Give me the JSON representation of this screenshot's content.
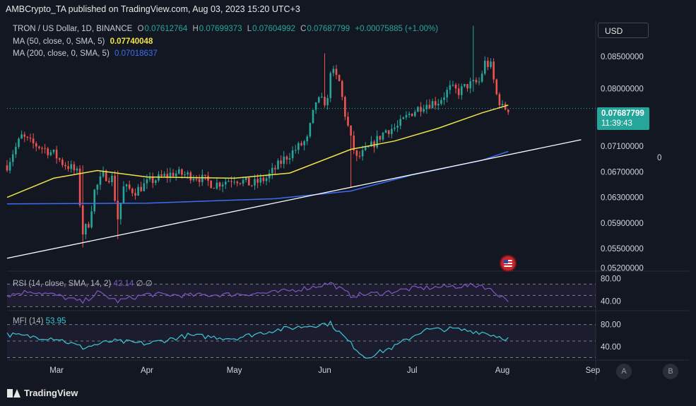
{
  "header": {
    "published": "AMBCrypto_TA published on TradingView.com, Aug 03, 2023 15:20 UTC+3"
  },
  "legend": {
    "symbol": "TRON / US Dollar, 1D, BINANCE",
    "o_label": "O",
    "o": "0.07612764",
    "h_label": "H",
    "h": "0.07699373",
    "l_label": "L",
    "l": "0.07604992",
    "c_label": "C",
    "c": "0.07687799",
    "change": "+0.00075885 (+1.00%)",
    "ma50_label": "MA (50, close, 0, SMA, 5)",
    "ma50_value": "0.07740048",
    "ma200_label": "MA (200, close, 0, SMA, 5)",
    "ma200_value": "0.07018637"
  },
  "currency_button": "USD",
  "price_tag": {
    "value": "0.07687799",
    "countdown": "11:39:43"
  },
  "side_value": "0",
  "scale_buttons": {
    "a": "A",
    "b": "B"
  },
  "rsi": {
    "label": "RSI (14, close, SMA, 14, 2)",
    "value": "42.14",
    "extra": "∅ ∅"
  },
  "mfi": {
    "label": "MFI (14)",
    "value": "53.95"
  },
  "footer": {
    "brand": "TradingView"
  },
  "colors": {
    "background": "#131722",
    "up": "#26a69a",
    "down": "#ef5350",
    "ma50": "#f0e24a",
    "ma200": "#3d6df5",
    "trendline": "#ffffff",
    "rsi": "#7e57c2",
    "mfi": "#3cc8d8"
  },
  "chart_data": [
    {
      "type": "candlestick",
      "title": "TRON / US Dollar, 1D, BINANCE",
      "x_ticks": [
        "Mar",
        "Apr",
        "May",
        "Jun",
        "Jul",
        "Aug",
        "Sep"
      ],
      "y_ticks": [
        "0.05200000",
        "0.05500000",
        "0.05900000",
        "0.06300000",
        "0.06700000",
        "0.07100000",
        "0.08000000",
        "0.08500000"
      ],
      "ylim": [
        0.0515,
        0.0905
      ],
      "x_start": "2023-02-12",
      "x_end": "2023-09-02",
      "last_price": 0.07687799,
      "candle_path": [
        [
          "2023-02-12",
          0.068
        ],
        [
          "2023-02-14",
          0.07
        ],
        [
          "2023-02-17",
          0.0725
        ],
        [
          "2023-02-20",
          0.0715
        ],
        [
          "2023-02-24",
          0.0708
        ],
        [
          "2023-02-28",
          0.0698
        ],
        [
          "2023-03-03",
          0.0684
        ],
        [
          "2023-03-06",
          0.0676
        ],
        [
          "2023-03-08",
          0.0668
        ],
        [
          "2023-03-10",
          0.0575
        ],
        [
          "2023-03-12",
          0.059
        ],
        [
          "2023-03-14",
          0.064
        ],
        [
          "2023-03-17",
          0.0665
        ],
        [
          "2023-03-20",
          0.066
        ],
        [
          "2023-03-22",
          0.0598
        ],
        [
          "2023-03-24",
          0.0645
        ],
        [
          "2023-03-28",
          0.064
        ],
        [
          "2023-04-02",
          0.0655
        ],
        [
          "2023-04-10",
          0.0668
        ],
        [
          "2023-04-18",
          0.0663
        ],
        [
          "2023-04-24",
          0.065
        ],
        [
          "2023-05-01",
          0.066
        ],
        [
          "2023-05-07",
          0.065
        ],
        [
          "2023-05-12",
          0.066
        ],
        [
          "2023-05-18",
          0.069
        ],
        [
          "2023-05-22",
          0.0705
        ],
        [
          "2023-05-26",
          0.072
        ],
        [
          "2023-05-29",
          0.078
        ],
        [
          "2023-06-02",
          0.078
        ],
        [
          "2023-06-03",
          0.083
        ],
        [
          "2023-06-06",
          0.081
        ],
        [
          "2023-06-08",
          0.076
        ],
        [
          "2023-06-10",
          0.072
        ],
        [
          "2023-06-12",
          0.069
        ],
        [
          "2023-06-17",
          0.071
        ],
        [
          "2023-06-22",
          0.0735
        ],
        [
          "2023-06-26",
          0.074
        ],
        [
          "2023-06-30",
          0.076
        ],
        [
          "2023-07-05",
          0.0775
        ],
        [
          "2023-07-10",
          0.078
        ],
        [
          "2023-07-14",
          0.08
        ],
        [
          "2023-07-17",
          0.0795
        ],
        [
          "2023-07-20",
          0.0805
        ],
        [
          "2023-07-24",
          0.081
        ],
        [
          "2023-07-26",
          0.084
        ],
        [
          "2023-07-28",
          0.0835
        ],
        [
          "2023-07-30",
          0.079
        ],
        [
          "2023-08-01",
          0.077
        ],
        [
          "2023-08-03",
          0.07687799
        ]
      ],
      "spikes": [
        {
          "date": "2023-03-10",
          "low": 0.0552,
          "high": 0.068
        },
        {
          "date": "2023-03-22",
          "low": 0.0565,
          "high": 0.0672
        },
        {
          "date": "2023-06-01",
          "low": 0.077,
          "high": 0.0855
        },
        {
          "date": "2023-06-10",
          "low": 0.0646,
          "high": 0.073
        },
        {
          "date": "2023-07-22",
          "low": 0.0795,
          "high": 0.0898
        }
      ],
      "ma50": [
        [
          "2023-02-12",
          0.063
        ],
        [
          "2023-02-28",
          0.066
        ],
        [
          "2023-03-15",
          0.0672
        ],
        [
          "2023-04-01",
          0.0662
        ],
        [
          "2023-05-01",
          0.066
        ],
        [
          "2023-05-20",
          0.0668
        ],
        [
          "2023-06-10",
          0.0705
        ],
        [
          "2023-06-25",
          0.0718
        ],
        [
          "2023-07-10",
          0.0738
        ],
        [
          "2023-07-25",
          0.0762
        ],
        [
          "2023-08-03",
          0.07740048
        ]
      ],
      "ma200": [
        [
          "2023-02-12",
          0.062
        ],
        [
          "2023-04-01",
          0.0621
        ],
        [
          "2023-05-15",
          0.0628
        ],
        [
          "2023-06-10",
          0.064
        ],
        [
          "2023-07-01",
          0.0665
        ],
        [
          "2023-07-25",
          0.0688
        ],
        [
          "2023-08-03",
          0.07018637
        ]
      ],
      "trendline": [
        [
          "2023-02-12",
          0.0535
        ],
        [
          "2023-08-28",
          0.072
        ]
      ]
    },
    {
      "type": "line",
      "title": "RSI (14, close, SMA, 14, 2)",
      "y_ticks": [
        "40.00",
        "80.00"
      ],
      "ylim": [
        28,
        88
      ],
      "bands": [
        70,
        50,
        30
      ],
      "x": [
        "2023-02-12",
        "2023-02-20",
        "2023-03-01",
        "2023-03-10",
        "2023-03-15",
        "2023-03-22",
        "2023-04-01",
        "2023-04-15",
        "2023-05-01",
        "2023-05-15",
        "2023-05-27",
        "2023-06-03",
        "2023-06-10",
        "2023-06-20",
        "2023-07-01",
        "2023-07-15",
        "2023-07-25",
        "2023-08-03"
      ],
      "series": [
        {
          "values": [
            50,
            58,
            50,
            38,
            55,
            40,
            52,
            50,
            52,
            55,
            64,
            72,
            50,
            54,
            62,
            66,
            68,
            42.14
          ]
        }
      ]
    },
    {
      "type": "line",
      "title": "MFI (14)",
      "y_ticks": [
        "40.00",
        "80.00"
      ],
      "ylim": [
        18,
        100
      ],
      "bands": [
        80,
        50,
        20
      ],
      "x": [
        "2023-02-12",
        "2023-02-20",
        "2023-03-01",
        "2023-03-10",
        "2023-03-20",
        "2023-04-01",
        "2023-04-15",
        "2023-05-01",
        "2023-05-15",
        "2023-05-27",
        "2023-06-03",
        "2023-06-10",
        "2023-06-15",
        "2023-06-25",
        "2023-07-05",
        "2023-07-15",
        "2023-07-25",
        "2023-08-03"
      ],
      "series": [
        {
          "values": [
            62,
            58,
            55,
            38,
            50,
            45,
            60,
            55,
            70,
            78,
            82,
            45,
            20,
            40,
            70,
            72,
            66,
            53.95
          ]
        }
      ]
    }
  ]
}
